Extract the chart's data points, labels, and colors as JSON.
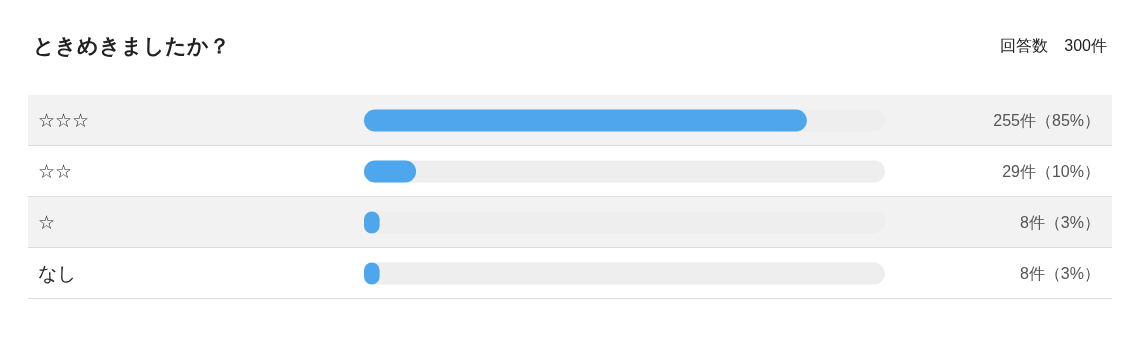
{
  "chart_data": {
    "type": "bar",
    "orientation": "horizontal",
    "title": "ときめきましたか？",
    "subtitle": "回答数　300件",
    "categories": [
      "☆☆☆",
      "☆☆",
      "☆",
      "なし"
    ],
    "values": [
      85,
      10,
      3,
      3
    ],
    "value_labels": [
      "255件（85%）",
      "29件（10%）",
      "8件（3%）",
      "8件（3%）"
    ],
    "color": "#4ea7ec",
    "xlim": [
      0,
      100
    ],
    "tick_labels": "y"
  }
}
